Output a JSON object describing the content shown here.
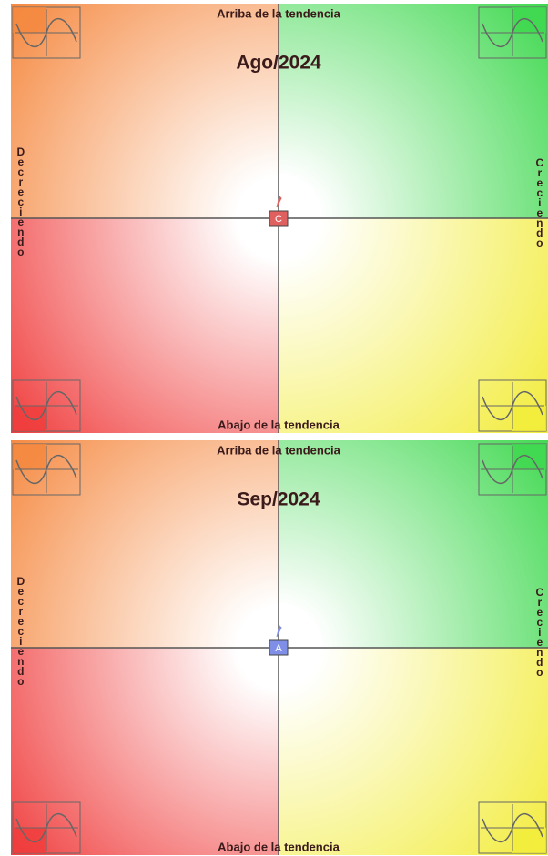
{
  "panels": [
    {
      "title": "Ago/2024",
      "top_label": "Arriba de la tendencia",
      "bottom_label": "Abajo de la tendencia",
      "left_label": "Decreciendo",
      "right_label": "Creciendo",
      "marker": {
        "label": "C",
        "color": "#e06060"
      }
    },
    {
      "title": "Sep/2024",
      "top_label": "Arriba de la tendencia",
      "bottom_label": "Abajo de la tendencia",
      "left_label": "Decreciendo",
      "right_label": "Creciendo",
      "marker": {
        "label": "A",
        "color": "#7f8fe8"
      }
    }
  ]
}
